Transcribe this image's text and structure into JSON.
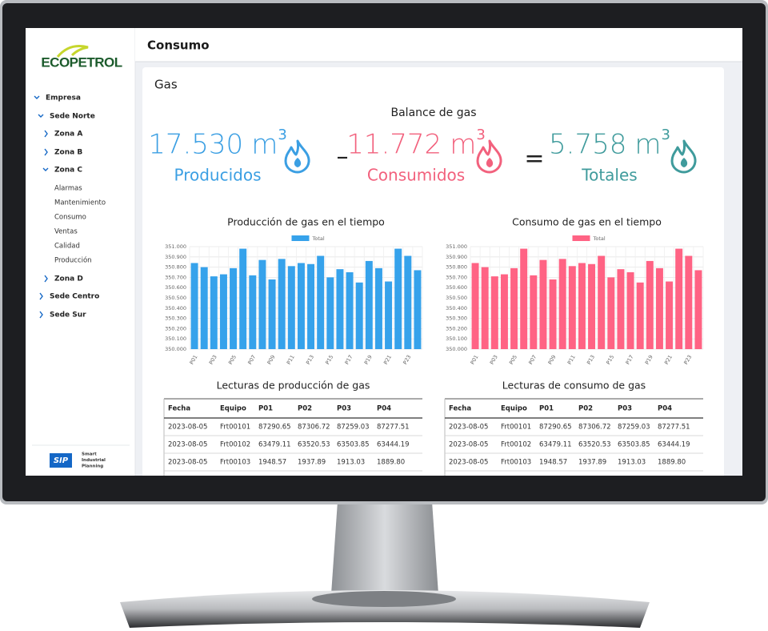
{
  "sidebar": {
    "logo": "ECOPETROL",
    "tree": [
      "Empresa",
      "Sede Norte",
      "Zona A",
      "Zona B",
      "Zona C",
      "Alarmas",
      "Mantenimiento",
      "Consumo",
      "Ventas",
      "Calidad",
      "Producción",
      "Zona D",
      "Sede Centro",
      "Sede Sur"
    ],
    "footer": {
      "logo": "SIP",
      "text": [
        "Smart",
        "Industrial",
        "Planning"
      ]
    }
  },
  "header": {
    "title": "Consumo"
  },
  "card": {
    "title": "Gas"
  },
  "balance": {
    "title": "Balance de gas",
    "items": [
      {
        "amount": "17.530",
        "unit": "m",
        "exponent": "3",
        "label": "Producidos",
        "color": "#3b9fe3"
      },
      {
        "amount": "11.772",
        "unit": "m",
        "exponent": "3",
        "label": "Consumidos",
        "color": "#f2617d"
      },
      {
        "amount": "5.758",
        "unit": "m",
        "exponent": "3",
        "label": "Totales",
        "color": "#3f9b9c"
      }
    ],
    "operators": [
      "–",
      "="
    ]
  },
  "chart_data": [
    {
      "type": "bar",
      "title": "Producción de gas en el tiempo",
      "categories": [
        "P01",
        null,
        "P03",
        null,
        "P05",
        null,
        "P07",
        null,
        "P09",
        null,
        "P11",
        null,
        "P13",
        null,
        "P15",
        null,
        "P17",
        null,
        "P19",
        null,
        "P21",
        null,
        "P23",
        null
      ],
      "series": [
        {
          "name": "Total",
          "color": "#36a2eb",
          "values": [
            350840,
            350800,
            350710,
            350730,
            350790,
            350980,
            350720,
            350870,
            350680,
            350880,
            350810,
            350840,
            350830,
            350910,
            350700,
            350780,
            350750,
            350650,
            350860,
            350790,
            350660,
            350980,
            350910,
            350770
          ]
        }
      ],
      "ylim": [
        350000,
        351000
      ],
      "yticks": [
        {
          "value": 350000,
          "label": "350.000"
        },
        {
          "value": 350100,
          "label": "350.100"
        },
        {
          "value": 350200,
          "label": "350.200"
        },
        {
          "value": 350300,
          "label": "350.300"
        },
        {
          "value": 350400,
          "label": "350.400"
        },
        {
          "value": 350500,
          "label": "350.500"
        },
        {
          "value": 350600,
          "label": "350.600"
        },
        {
          "value": 350700,
          "label": "350.700"
        },
        {
          "value": 350800,
          "label": "350.800"
        },
        {
          "value": 350900,
          "label": "350.900"
        },
        {
          "value": 351000,
          "label": "351.000"
        }
      ],
      "grid": true
    },
    {
      "type": "bar",
      "title": "Consumo de gas en el tiempo",
      "categories": [
        "P01",
        null,
        "P03",
        null,
        "P05",
        null,
        "P07",
        null,
        "P09",
        null,
        "P11",
        null,
        "P13",
        null,
        "P15",
        null,
        "P17",
        null,
        "P19",
        null,
        "P21",
        null,
        "P23",
        null
      ],
      "series": [
        {
          "name": "Total",
          "color": "#ff6384",
          "values": [
            350840,
            350800,
            350710,
            350730,
            350790,
            350980,
            350720,
            350870,
            350680,
            350880,
            350810,
            350840,
            350830,
            350910,
            350700,
            350780,
            350750,
            350650,
            350860,
            350790,
            350660,
            350980,
            350910,
            350770
          ]
        }
      ],
      "ylim": [
        350000,
        351000
      ],
      "yticks": [
        {
          "value": 350000,
          "label": "350.000"
        },
        {
          "value": 350100,
          "label": "350.100"
        },
        {
          "value": 350200,
          "label": "350.200"
        },
        {
          "value": 350300,
          "label": "350.300"
        },
        {
          "value": 350400,
          "label": "350.400"
        },
        {
          "value": 350500,
          "label": "350.500"
        },
        {
          "value": 350600,
          "label": "350.600"
        },
        {
          "value": 350700,
          "label": "350.700"
        },
        {
          "value": 350800,
          "label": "350.800"
        },
        {
          "value": 350900,
          "label": "350.900"
        },
        {
          "value": 351000,
          "label": "351.000"
        }
      ],
      "grid": true
    }
  ],
  "tables": [
    {
      "title": "Lecturas de producción de gas",
      "columns": [
        "Fecha",
        "Equipo",
        "P01",
        "P02",
        "P03",
        "P04"
      ],
      "rows": [
        [
          "2023-08-05",
          "Frt00101",
          "87290.65",
          "87306.72",
          "87259.03",
          "87277.51"
        ],
        [
          "2023-08-05",
          "Frt00102",
          "63479.11",
          "63520.53",
          "63503.85",
          "63444.19"
        ],
        [
          "2023-08-05",
          "Frt00103",
          "1948.57",
          "1937.89",
          "1913.03",
          "1889.80"
        ]
      ]
    },
    {
      "title": "Lecturas de consumo de gas",
      "columns": [
        "Fecha",
        "Equipo",
        "P01",
        "P02",
        "P03",
        "P04"
      ],
      "rows": [
        [
          "2023-08-05",
          "Frt00101",
          "87290.65",
          "87306.72",
          "87259.03",
          "87277.51"
        ],
        [
          "2023-08-05",
          "Frt00102",
          "63479.11",
          "63520.53",
          "63503.85",
          "63444.19"
        ],
        [
          "2023-08-05",
          "Frt00103",
          "1948.57",
          "1937.89",
          "1913.03",
          "1889.80"
        ]
      ]
    }
  ]
}
